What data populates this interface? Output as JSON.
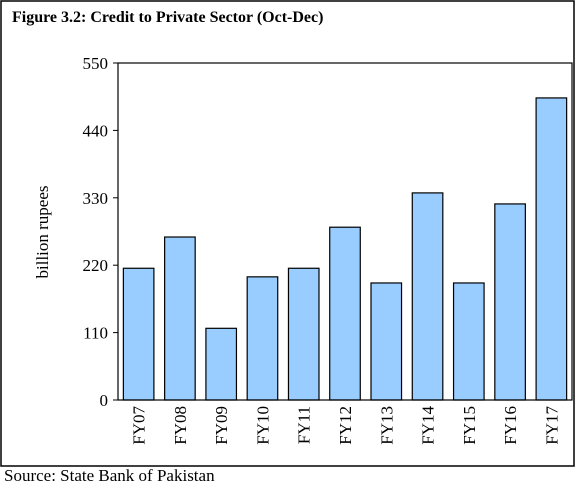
{
  "chart_data": {
    "type": "bar",
    "title": "Figure 3.2: Credit to Private Sector (Oct-Dec)",
    "y_label": "billion rupees",
    "source": "Source: State Bank of Pakistan",
    "categories": [
      "FY07",
      "FY08",
      "FY09",
      "FY10",
      "FY11",
      "FY12",
      "FY13",
      "FY14",
      "FY15",
      "FY16",
      "FY17"
    ],
    "values": [
      215,
      266,
      117,
      201,
      215,
      282,
      191,
      338,
      191,
      320,
      493
    ],
    "color": "#99ccff",
    "ylim": [
      0,
      550
    ],
    "yticks": [
      0,
      110,
      220,
      330,
      440,
      550
    ],
    "grid": false
  }
}
